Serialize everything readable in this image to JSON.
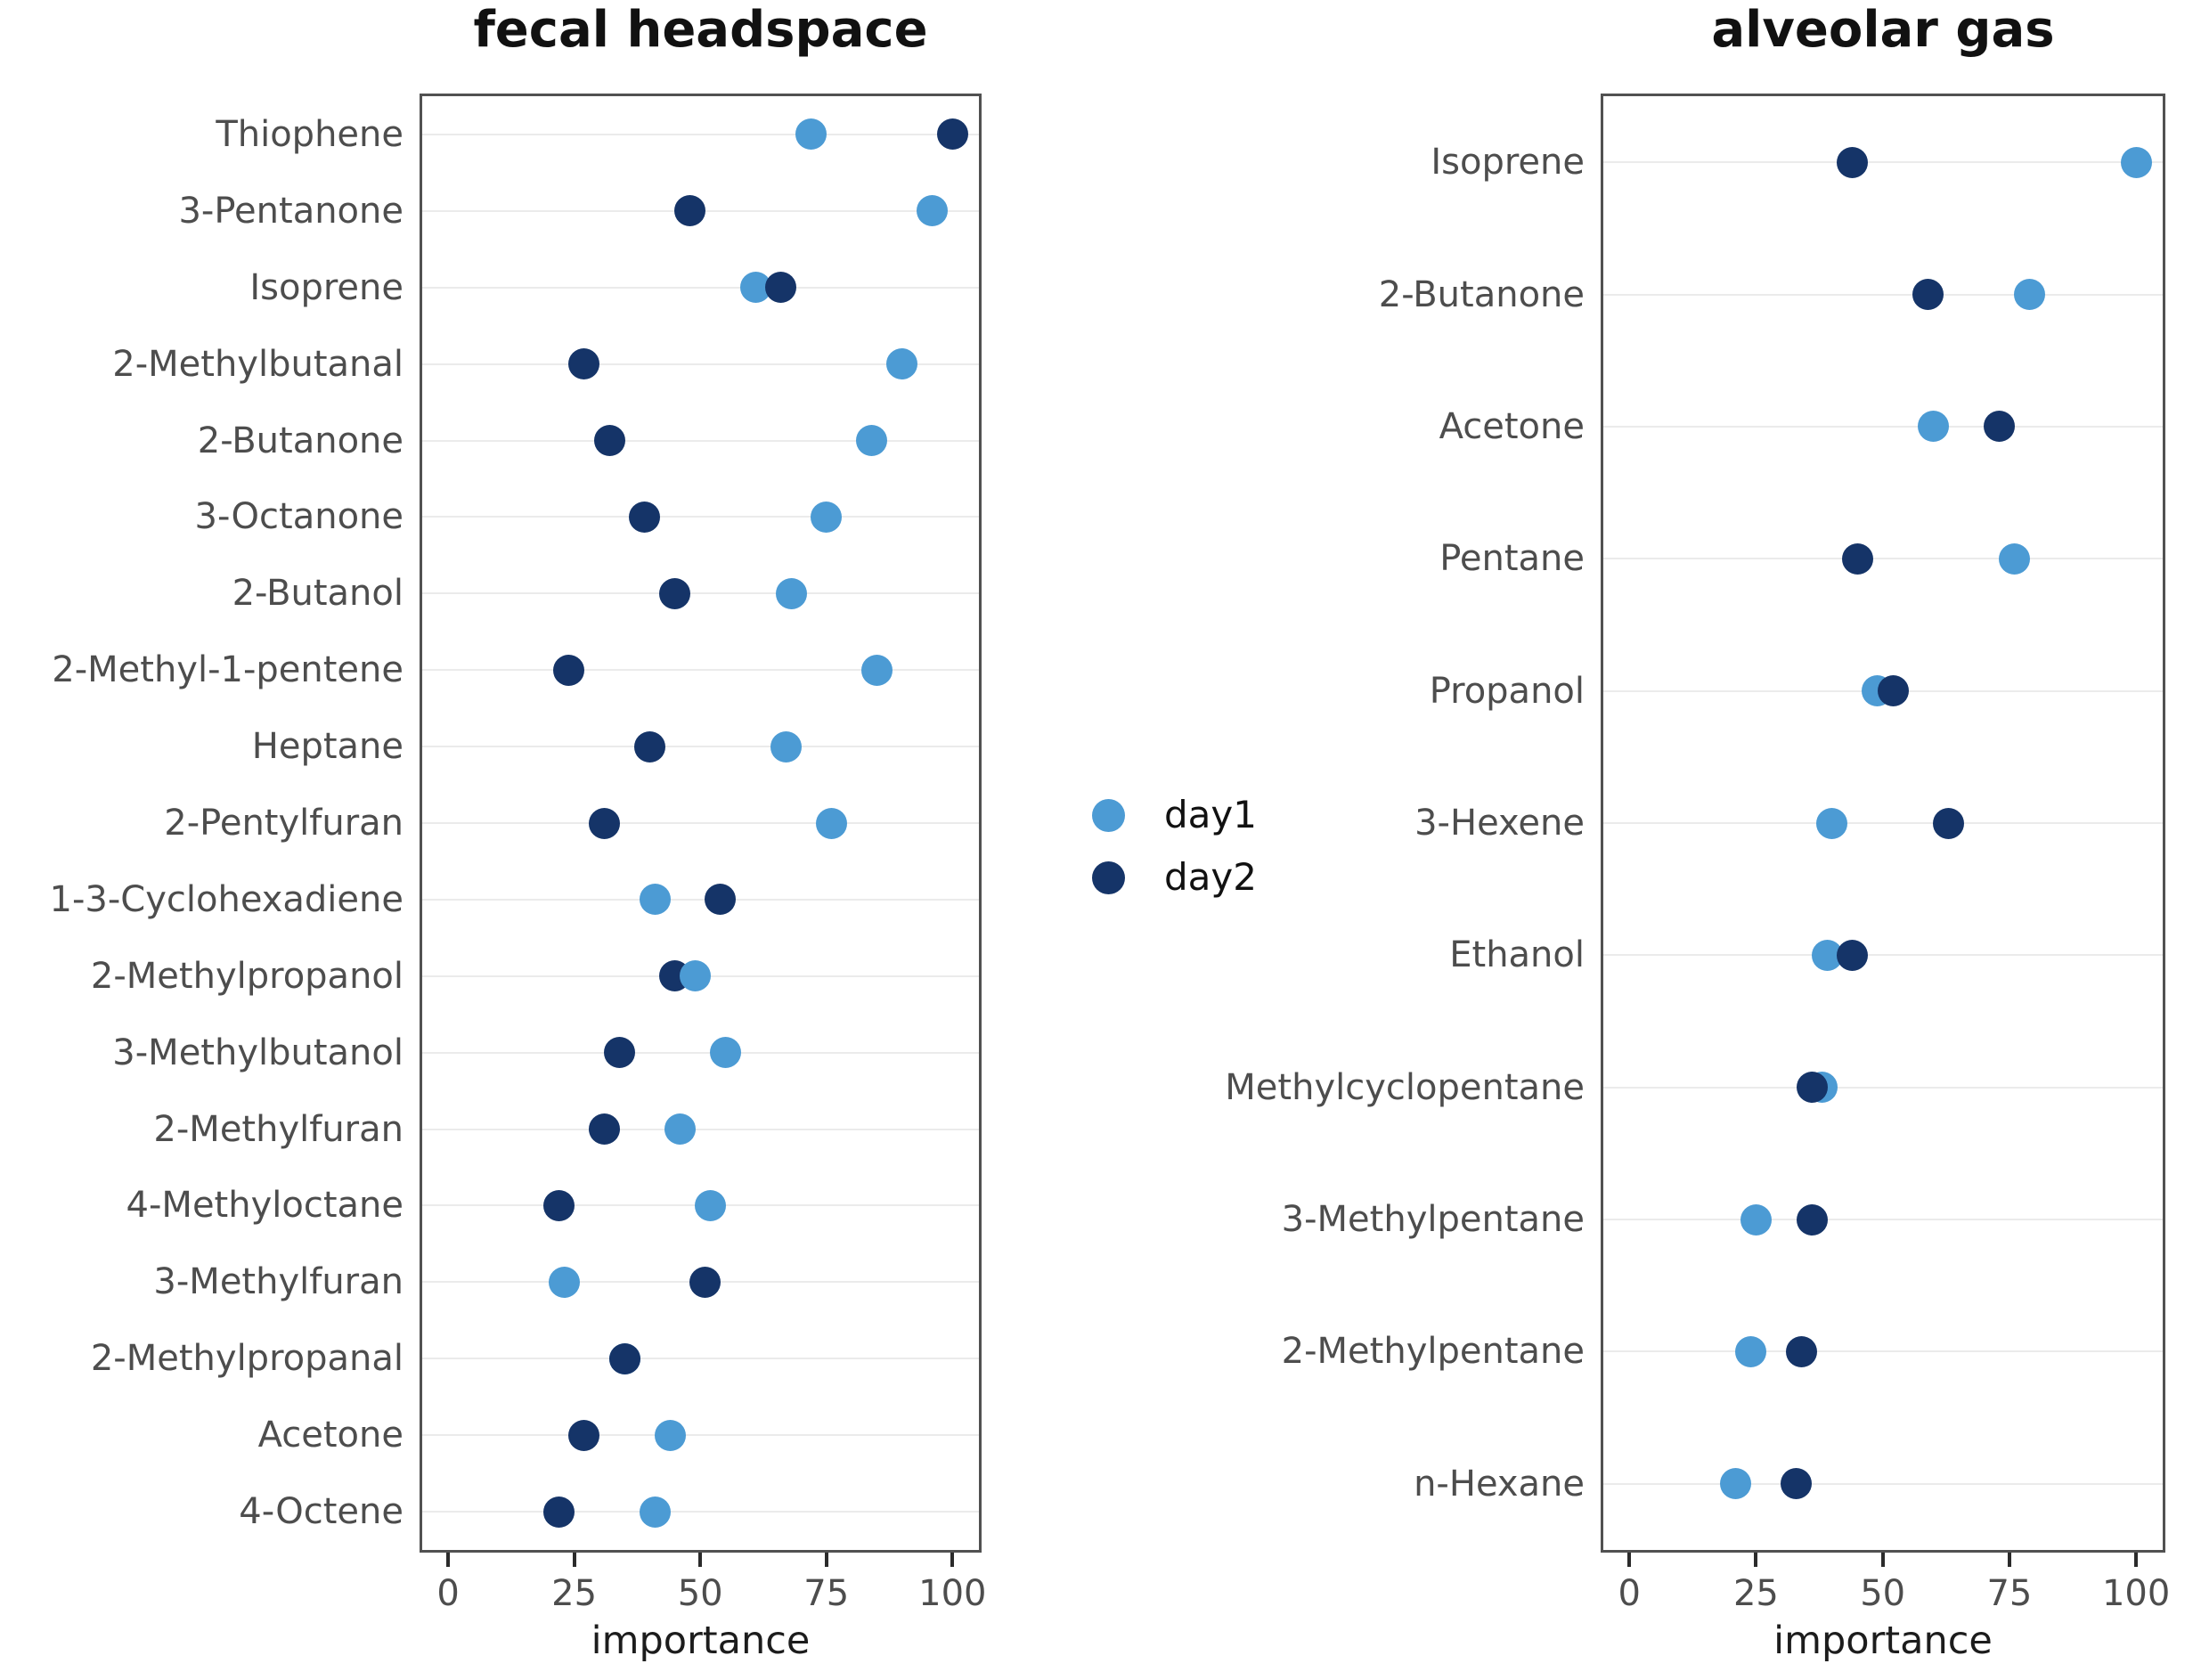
{
  "figure": {
    "background": "#ffffff",
    "legend": {
      "items": [
        {
          "label": "day1",
          "color": "#4c9bd4"
        },
        {
          "label": "day2",
          "color": "#153468"
        }
      ]
    },
    "axis": {
      "xlabel": "importance",
      "ticks": [
        "0",
        "25",
        "50",
        "75",
        "100"
      ],
      "xlim": [
        0,
        100
      ]
    }
  },
  "chart_data": [
    {
      "type": "scatter",
      "title": "fecal headspace",
      "xlabel": "importance",
      "xlim": [
        0,
        100
      ],
      "grid": "horizontal",
      "legend_position": "center-right-of-panel",
      "categories": [
        "Thiophene",
        "3-Pentanone",
        "Isoprene",
        "2-Methylbutanal",
        "2-Butanone",
        "3-Octanone",
        "2-Butanol",
        "2-Methyl-1-pentene",
        "Heptane",
        "2-Pentylfuran",
        "1-3-Cyclohexadiene",
        "2-Methylpropanol",
        "3-Methylbutanol",
        "2-Methylfuran",
        "4-Methyloctane",
        "3-Methylfuran",
        "2-Methylpropanal",
        "Acetone",
        "4-Octene"
      ],
      "series": [
        {
          "name": "day1",
          "color": "#4c9bd4",
          "values": [
            72,
            96,
            61,
            90,
            84,
            75,
            68,
            85,
            67,
            76,
            41,
            49,
            55,
            46,
            52,
            23,
            35,
            44,
            41
          ]
        },
        {
          "name": "day2",
          "color": "#153468",
          "values": [
            100,
            48,
            66,
            27,
            32,
            39,
            45,
            24,
            40,
            31,
            54,
            45,
            34,
            31,
            22,
            51,
            35,
            27,
            22
          ]
        }
      ],
      "draw_day1_on_top": [
        "2-Methylpropanol"
      ]
    },
    {
      "type": "scatter",
      "title": "alveolar gas",
      "xlabel": "importance",
      "xlim": [
        0,
        100
      ],
      "grid": "horizontal",
      "legend_position": "shared",
      "categories": [
        "Isoprene",
        "2-Butanone",
        "Acetone",
        "Pentane",
        "Propanol",
        "3-Hexene",
        "Ethanol",
        "Methylcyclopentane",
        "3-Methylpentane",
        "2-Methylpentane",
        "n-Hexane"
      ],
      "series": [
        {
          "name": "day1",
          "color": "#4c9bd4",
          "values": [
            100,
            79,
            60,
            76,
            49,
            40,
            39,
            38,
            25,
            24,
            21
          ]
        },
        {
          "name": "day2",
          "color": "#153468",
          "values": [
            44,
            59,
            73,
            45,
            52,
            63,
            44,
            36,
            36,
            34,
            33
          ]
        }
      ],
      "draw_day1_on_top": []
    }
  ]
}
